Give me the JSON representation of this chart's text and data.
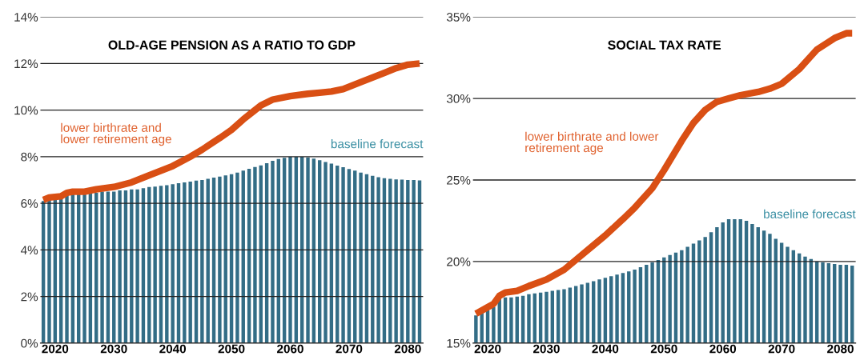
{
  "chart_data": [
    {
      "type": "bar",
      "title": "OLD-AGE PENSION AS A RATIO TO GDP",
      "x": [
        2018,
        2019,
        2020,
        2021,
        2022,
        2023,
        2024,
        2025,
        2026,
        2027,
        2028,
        2029,
        2030,
        2031,
        2032,
        2033,
        2034,
        2035,
        2036,
        2037,
        2038,
        2039,
        2040,
        2041,
        2042,
        2043,
        2044,
        2045,
        2046,
        2047,
        2048,
        2049,
        2050,
        2051,
        2052,
        2053,
        2054,
        2055,
        2056,
        2057,
        2058,
        2059,
        2060,
        2061,
        2062,
        2063,
        2064,
        2065,
        2066,
        2067,
        2068,
        2069,
        2070,
        2071,
        2072,
        2073,
        2074,
        2075,
        2076,
        2077,
        2078,
        2079,
        2080,
        2081,
        2082
      ],
      "series": [
        {
          "name": "baseline forecast",
          "color": "#336d86",
          "values": [
            6.1,
            6.15,
            6.2,
            6.2,
            6.35,
            6.4,
            6.4,
            6.4,
            6.45,
            6.45,
            6.5,
            6.5,
            6.5,
            6.55,
            6.55,
            6.6,
            6.6,
            6.65,
            6.7,
            6.72,
            6.75,
            6.78,
            6.82,
            6.86,
            6.9,
            6.93,
            6.97,
            7.0,
            7.05,
            7.1,
            7.15,
            7.2,
            7.25,
            7.32,
            7.4,
            7.48,
            7.56,
            7.63,
            7.72,
            7.82,
            7.9,
            7.95,
            8.0,
            8.0,
            8.0,
            7.97,
            7.92,
            7.85,
            7.77,
            7.7,
            7.62,
            7.55,
            7.47,
            7.4,
            7.32,
            7.25,
            7.18,
            7.12,
            7.08,
            7.05,
            7.03,
            7.02,
            7.0,
            7.0,
            6.98
          ]
        },
        {
          "name": "lower birthrate and\nlower retirement age",
          "type": "line",
          "color": "#d94f14",
          "x": [
            2018,
            2019,
            2021,
            2022,
            2023,
            2025,
            2027,
            2030,
            2033,
            2036,
            2040,
            2043,
            2045,
            2048,
            2050,
            2052,
            2054,
            2055,
            2057,
            2060,
            2063,
            2065,
            2067,
            2069,
            2072,
            2074,
            2076,
            2078,
            2080,
            2082
          ],
          "values": [
            6.15,
            6.25,
            6.3,
            6.45,
            6.5,
            6.5,
            6.6,
            6.7,
            6.9,
            7.2,
            7.6,
            8.0,
            8.3,
            8.8,
            9.15,
            9.6,
            10.0,
            10.2,
            10.45,
            10.6,
            10.7,
            10.75,
            10.8,
            10.9,
            11.2,
            11.4,
            11.6,
            11.8,
            11.95,
            12.0
          ]
        }
      ],
      "xlim": [
        2017.5,
        2082.6
      ],
      "xticks": [
        2020,
        2030,
        2040,
        2050,
        2060,
        2070,
        2080
      ],
      "ylim": [
        0,
        14
      ],
      "yticks": [
        {
          "value": 0,
          "label": "0%"
        },
        {
          "value": 2,
          "label": "2%"
        },
        {
          "value": 4,
          "label": "4%"
        },
        {
          "value": 6,
          "label": "6%"
        },
        {
          "value": 8,
          "label": "8%"
        },
        {
          "value": 10,
          "label": "10%"
        },
        {
          "value": 12,
          "label": "12%"
        },
        {
          "value": 14,
          "label": "14%"
        }
      ],
      "grid": "y",
      "legend": false
    },
    {
      "type": "bar",
      "title": "SOCIAL TAX RATE",
      "x": [
        2018,
        2019,
        2020,
        2021,
        2022,
        2023,
        2024,
        2025,
        2026,
        2027,
        2028,
        2029,
        2030,
        2031,
        2032,
        2033,
        2034,
        2035,
        2036,
        2037,
        2038,
        2039,
        2040,
        2041,
        2042,
        2043,
        2044,
        2045,
        2046,
        2047,
        2048,
        2049,
        2050,
        2051,
        2052,
        2053,
        2054,
        2055,
        2056,
        2057,
        2058,
        2059,
        2060,
        2061,
        2062,
        2063,
        2064,
        2065,
        2066,
        2067,
        2068,
        2069,
        2070,
        2071,
        2072,
        2073,
        2074,
        2075,
        2076,
        2077,
        2078,
        2079,
        2080,
        2081,
        2082
      ],
      "series": [
        {
          "name": "baseline forecast",
          "color": "#336d86",
          "values": [
            16.7,
            16.9,
            17.0,
            17.2,
            17.7,
            17.8,
            17.8,
            17.85,
            17.9,
            18.0,
            18.05,
            18.1,
            18.15,
            18.2,
            18.25,
            18.3,
            18.4,
            18.5,
            18.6,
            18.7,
            18.8,
            18.9,
            19.0,
            19.1,
            19.2,
            19.3,
            19.4,
            19.5,
            19.65,
            19.8,
            19.95,
            20.1,
            20.25,
            20.4,
            20.55,
            20.7,
            20.9,
            21.1,
            21.3,
            21.5,
            21.8,
            22.1,
            22.4,
            22.6,
            22.6,
            22.6,
            22.5,
            22.3,
            22.1,
            21.9,
            21.7,
            21.4,
            21.15,
            20.9,
            20.7,
            20.5,
            20.3,
            20.15,
            20.0,
            19.95,
            19.9,
            19.85,
            19.8,
            19.8,
            19.75
          ]
        },
        {
          "name": "lower birthrate and lower\nretirement age",
          "type": "line",
          "color": "#d94f14",
          "x": [
            2018,
            2020,
            2021,
            2022,
            2023,
            2025,
            2027,
            2030,
            2033,
            2035,
            2038,
            2040,
            2043,
            2045,
            2048,
            2050,
            2053,
            2055,
            2057,
            2059,
            2061,
            2063,
            2066,
            2068,
            2070,
            2073,
            2076,
            2079,
            2081,
            2082
          ],
          "values": [
            16.8,
            17.2,
            17.4,
            17.9,
            18.1,
            18.2,
            18.5,
            18.9,
            19.5,
            20.1,
            21.0,
            21.6,
            22.6,
            23.3,
            24.5,
            25.6,
            27.4,
            28.5,
            29.3,
            29.8,
            30.0,
            30.2,
            30.4,
            30.6,
            30.9,
            31.8,
            33.0,
            33.7,
            34.0,
            34.0
          ]
        }
      ],
      "xlim": [
        2017.5,
        2082.6
      ],
      "xticks": [
        2020,
        2030,
        2040,
        2050,
        2060,
        2070,
        2080
      ],
      "ylim": [
        15,
        35
      ],
      "yticks": [
        {
          "value": 15,
          "label": "15%"
        },
        {
          "value": 20,
          "label": "20%"
        },
        {
          "value": 25,
          "label": "25%"
        },
        {
          "value": 30,
          "label": "30%"
        },
        {
          "value": 35,
          "label": "35%"
        }
      ],
      "grid": "y",
      "legend": false
    }
  ]
}
